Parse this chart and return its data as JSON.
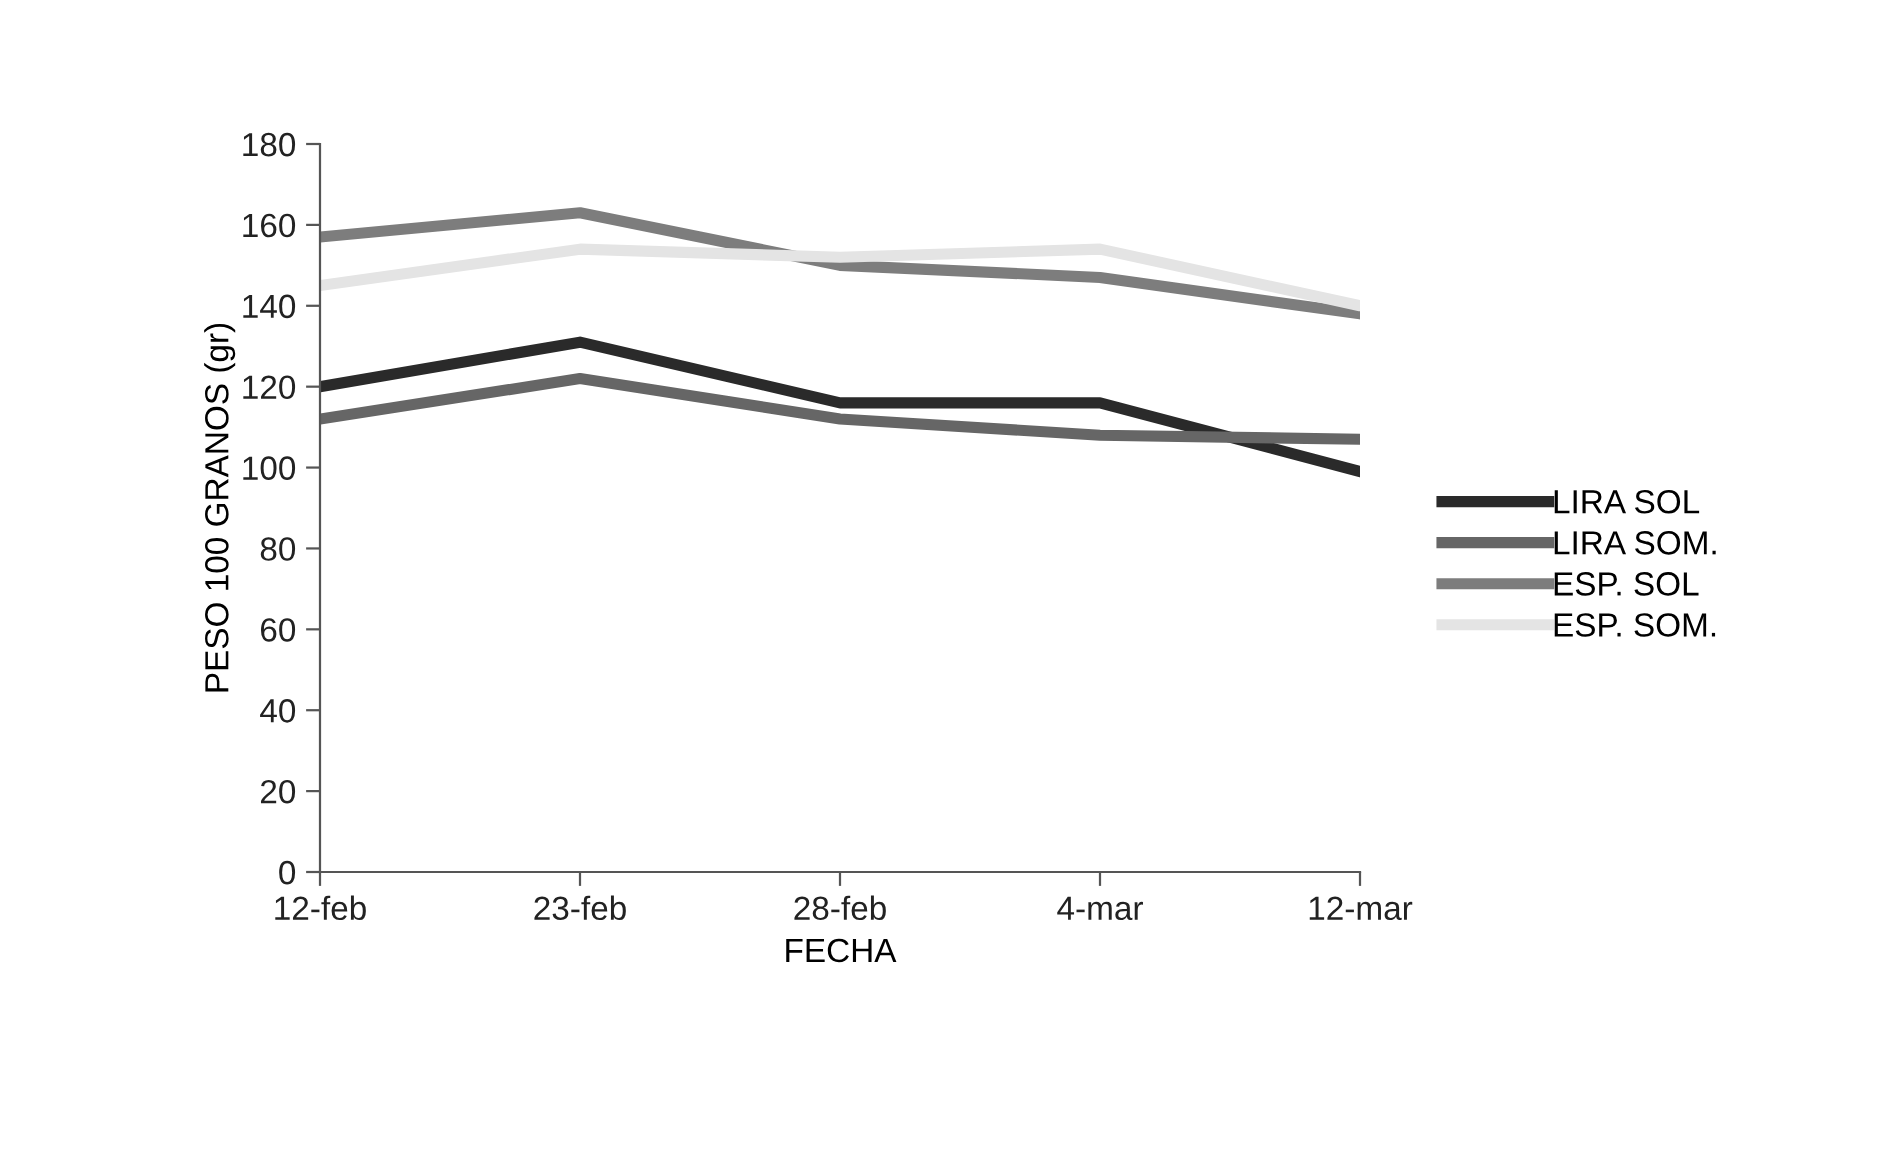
{
  "chart_data": {
    "type": "line",
    "xlabel": "FECHA",
    "ylabel": "PESO 100 GRANOS (gr)",
    "categories": [
      "12-feb",
      "23-feb",
      "28-feb",
      "4-mar",
      "12-mar"
    ],
    "series": [
      {
        "name": "LIRA SOL",
        "color": "#2a2a2a",
        "values": [
          120,
          131,
          116,
          116,
          99
        ]
      },
      {
        "name": "LIRA SOM.",
        "color": "#666666",
        "values": [
          112,
          122,
          112,
          108,
          107
        ]
      },
      {
        "name": "ESP. SOL",
        "color": "#7d7d7d",
        "values": [
          157,
          163,
          150,
          147,
          138
        ]
      },
      {
        "name": "ESP. SOM.",
        "color": "#e4e4e4",
        "values": [
          145,
          154,
          152,
          154,
          140
        ]
      }
    ],
    "ylim": [
      0,
      180
    ],
    "yticks": [
      0,
      20,
      40,
      60,
      80,
      100,
      120,
      140,
      160,
      180
    ],
    "grid": false,
    "legend": "right",
    "marker": "none",
    "line_style": "solid"
  }
}
